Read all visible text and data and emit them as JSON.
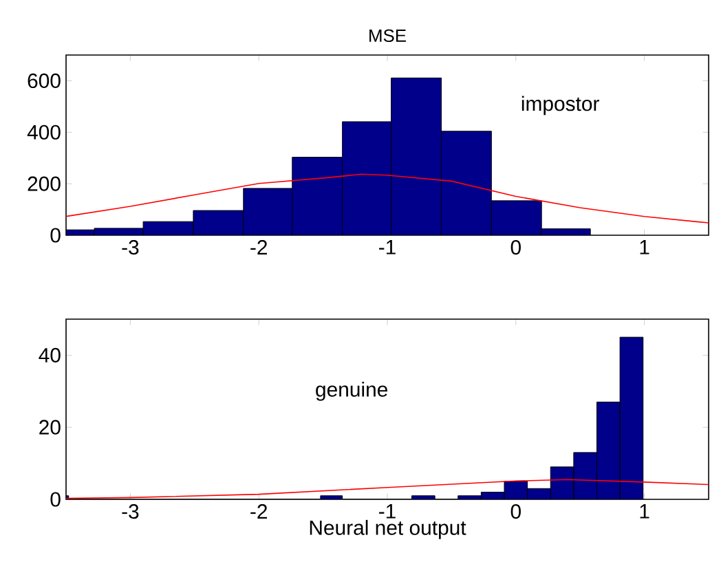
{
  "chart_data": [
    {
      "type": "histogram",
      "title": "MSE",
      "annotations": [
        "impostor"
      ],
      "xlim": [
        -3.5,
        1.5
      ],
      "xticks": [
        -3,
        -2,
        -1,
        0,
        1
      ],
      "ylim": [
        0,
        700
      ],
      "yticks": [
        0,
        200,
        400,
        600
      ],
      "grid": false,
      "series": [
        {
          "type": "histogram",
          "color": "#00008b",
          "bins": [
            -3.5,
            -3.28,
            -2.9,
            -2.51,
            -2.12,
            -1.74,
            -1.35,
            -0.97,
            -0.58,
            -0.19,
            0.2,
            0.58
          ],
          "values": [
            21,
            27,
            53,
            96,
            182,
            303,
            441,
            611,
            404,
            134,
            25
          ]
        },
        {
          "type": "line",
          "color": "#ff0000",
          "x": [
            -3.5,
            -3,
            -2.5,
            -2,
            -1.5,
            -1.2,
            -1,
            -0.5,
            0,
            0.5,
            1,
            1.5
          ],
          "values": [
            73,
            112,
            157,
            201,
            222,
            237,
            233,
            210,
            151,
            107,
            73,
            48
          ]
        }
      ]
    },
    {
      "type": "histogram",
      "xlabel": "Neural net output",
      "annotations": [
        "genuine"
      ],
      "xlim": [
        -3.5,
        1.5
      ],
      "xticks": [
        -3,
        -2,
        -1,
        0,
        1
      ],
      "ylim": [
        0,
        50
      ],
      "yticks": [
        0,
        20,
        40
      ],
      "grid": false,
      "series": [
        {
          "type": "histogram",
          "color": "#00008b",
          "bins": [
            -3.5,
            -3.48,
            -1.52,
            -1.35,
            -0.81,
            -0.63,
            -0.45,
            -0.27,
            -0.09,
            0.09,
            0.27,
            0.45,
            0.63,
            0.81,
            0.99
          ],
          "values": [
            1,
            0,
            1,
            0,
            1,
            0,
            1,
            2,
            5,
            3,
            9,
            13,
            27,
            45
          ]
        },
        {
          "type": "line",
          "color": "#ff0000",
          "x": [
            -3.5,
            -3,
            -2,
            -1,
            0,
            0.4,
            1,
            1.5
          ],
          "values": [
            0.3,
            0.5,
            1.4,
            3.3,
            5.1,
            5.5,
            4.8,
            4.1
          ]
        }
      ]
    }
  ]
}
